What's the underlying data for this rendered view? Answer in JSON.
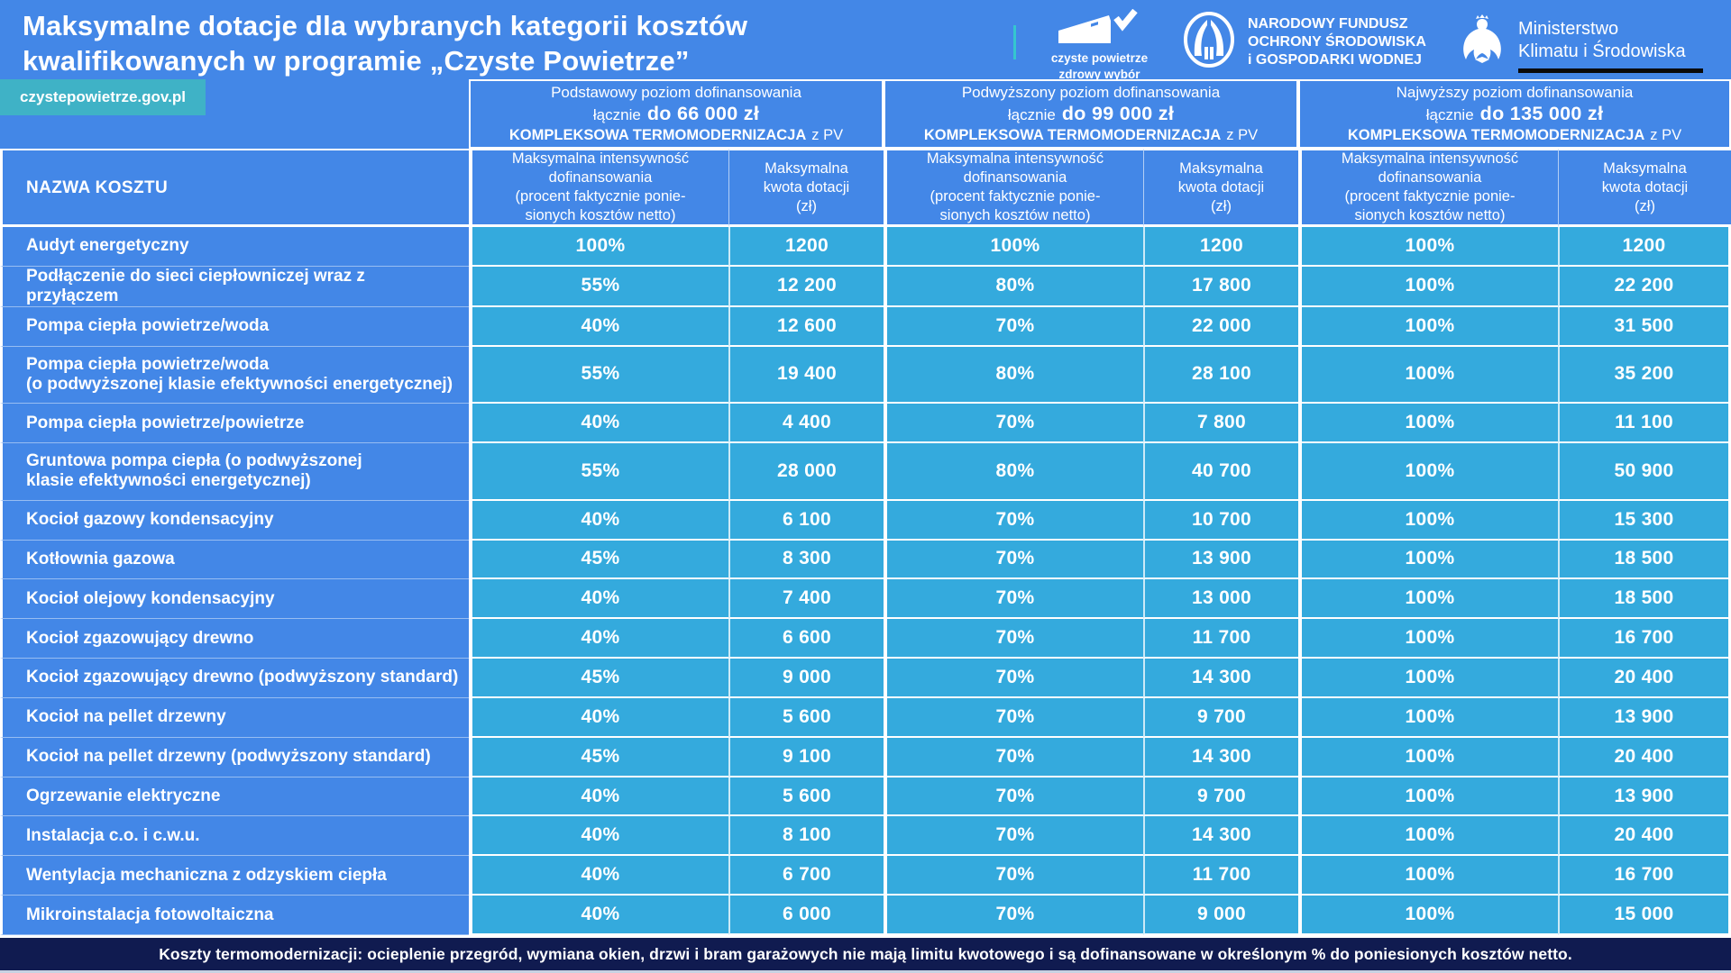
{
  "colors": {
    "background_blue": "#4387e7",
    "value_cell_cyan": "#34aadd",
    "badge_teal": "#3fb2c6",
    "accent_teal": "#35c6ce",
    "footer_navy": "#101b50"
  },
  "header": {
    "title": "Maksymalne dotacje dla wybranych kategorii kosztów\nkwalifikowanych w programie „Czyste Powietrze”",
    "site_badge": "czystepowietrze.gov.pl",
    "logos": {
      "czyste_powietrze": {
        "line1": "czyste powietrze",
        "line2": "zdrowy wybór"
      },
      "nfosigw": {
        "text": "NARODOWY FUNDUSZ\nOCHRONY ŚRODOWISKA\ni GOSPODARKI WODNEJ"
      },
      "ministry": {
        "text": "Ministerstwo\nKlimatu i Środowiska"
      }
    }
  },
  "chart_data": {
    "type": "table",
    "title": "Maksymalne dotacje dla wybranych kategorii kosztów kwalifikowanych w programie „Czyste Powietrze”",
    "name_column_header": "NAZWA KOSZTU",
    "groups": [
      {
        "title": "Podstawowy poziom dofinansowania",
        "total_prefix": "łącznie",
        "total_amount": "do 66 000 zł",
        "thermo_label": "KOMPLEKSOWA TERMOMODERNIZACJA",
        "thermo_suffix": "z PV"
      },
      {
        "title": "Podwyższony poziom dofinansowania",
        "total_prefix": "łącznie",
        "total_amount": "do 99 000 zł",
        "thermo_label": "KOMPLEKSOWA TERMOMODERNIZACJA",
        "thermo_suffix": "z PV"
      },
      {
        "title": "Najwyższy poziom dofinansowania",
        "total_prefix": "łącznie",
        "total_amount": "do 135 000 zł",
        "thermo_label": "KOMPLEKSOWA TERMOMODERNIZACJA",
        "thermo_suffix": "z PV"
      }
    ],
    "sub_headers": {
      "intensity": "Maksymalna intensywność\ndofinansowania\n(procent faktycznie ponie-\nsionych kosztów netto)",
      "amount": "Maksymalna\nkwota dotacji\n(zł)"
    },
    "rows": [
      {
        "name": "Audyt energetyczny",
        "values": [
          "100%",
          "1200",
          "100%",
          "1200",
          "100%",
          "1200"
        ]
      },
      {
        "name": "Podłączenie do sieci ciepłowniczej wraz z przyłączem",
        "values": [
          "55%",
          "12 200",
          "80%",
          "17 800",
          "100%",
          "22 200"
        ]
      },
      {
        "name": "Pompa ciepła powietrze/woda",
        "values": [
          "40%",
          "12 600",
          "70%",
          "22 000",
          "100%",
          "31 500"
        ]
      },
      {
        "name": "Pompa ciepła powietrze/woda\n(o podwyższonej klasie efektywności energetycznej)",
        "values": [
          "55%",
          "19 400",
          "80%",
          "28 100",
          "100%",
          "35 200"
        ]
      },
      {
        "name": "Pompa ciepła powietrze/powietrze",
        "values": [
          "40%",
          "4 400",
          "70%",
          "7 800",
          "100%",
          "11 100"
        ]
      },
      {
        "name": "Gruntowa pompa ciepła (o podwyższonej\nklasie efektywności energetycznej)",
        "values": [
          "55%",
          "28 000",
          "80%",
          "40 700",
          "100%",
          "50 900"
        ]
      },
      {
        "name": "Kocioł gazowy kondensacyjny",
        "values": [
          "40%",
          "6 100",
          "70%",
          "10 700",
          "100%",
          "15 300"
        ]
      },
      {
        "name": "Kotłownia gazowa",
        "values": [
          "45%",
          "8 300",
          "70%",
          "13 900",
          "100%",
          "18 500"
        ]
      },
      {
        "name": "Kocioł olejowy kondensacyjny",
        "values": [
          "40%",
          "7 400",
          "70%",
          "13 000",
          "100%",
          "18 500"
        ]
      },
      {
        "name": "Kocioł zgazowujący drewno",
        "values": [
          "40%",
          "6 600",
          "70%",
          "11 700",
          "100%",
          "16 700"
        ]
      },
      {
        "name": "Kocioł zgazowujący drewno (podwyższony standard)",
        "values": [
          "45%",
          "9 000",
          "70%",
          "14 300",
          "100%",
          "20 400"
        ]
      },
      {
        "name": "Kocioł na pellet drzewny",
        "values": [
          "40%",
          "5 600",
          "70%",
          "9 700",
          "100%",
          "13 900"
        ]
      },
      {
        "name": "Kocioł na pellet drzewny (podwyższony standard)",
        "values": [
          "45%",
          "9 100",
          "70%",
          "14 300",
          "100%",
          "20 400"
        ]
      },
      {
        "name": "Ogrzewanie elektryczne",
        "values": [
          "40%",
          "5 600",
          "70%",
          "9 700",
          "100%",
          "13 900"
        ]
      },
      {
        "name": "Instalacja c.o. i c.w.u.",
        "values": [
          "40%",
          "8 100",
          "70%",
          "14 300",
          "100%",
          "20 400"
        ]
      },
      {
        "name": "Wentylacja mechaniczna z odzyskiem ciepła",
        "values": [
          "40%",
          "6 700",
          "70%",
          "11 700",
          "100%",
          "16 700"
        ]
      },
      {
        "name": "Mikroinstalacja fotowoltaiczna",
        "values": [
          "40%",
          "6 000",
          "70%",
          "9 000",
          "100%",
          "15 000"
        ]
      }
    ]
  },
  "footer": {
    "text": "Koszty termomodernizacji: ocieplenie przegród, wymiana okien, drzwi i bram garażowych nie mają limitu kwotowego i są dofinansowane w określonym % do poniesionych kosztów netto."
  }
}
